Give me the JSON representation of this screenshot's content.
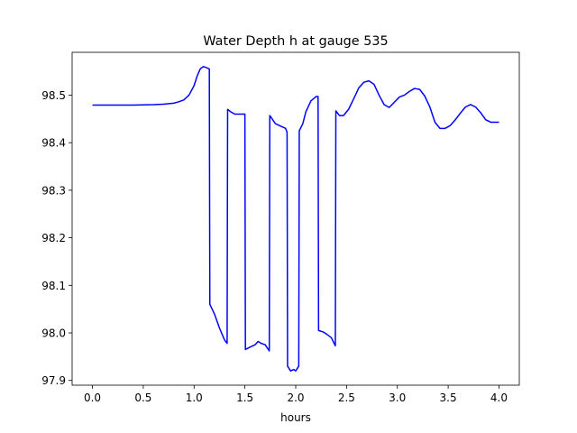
{
  "chart_data": {
    "type": "line",
    "title": "Water Depth h at gauge 535",
    "xlabel": "hours",
    "ylabel": "",
    "xlim": [
      -0.2,
      4.2
    ],
    "ylim": [
      97.89,
      98.59
    ],
    "xticks": [
      0.0,
      0.5,
      1.0,
      1.5,
      2.0,
      2.5,
      3.0,
      3.5,
      4.0
    ],
    "xtick_labels": [
      "0.0",
      "0.5",
      "1.0",
      "1.5",
      "2.0",
      "2.5",
      "3.0",
      "3.5",
      "4.0"
    ],
    "yticks": [
      97.9,
      98.0,
      98.1,
      98.2,
      98.3,
      98.4,
      98.5
    ],
    "ytick_labels": [
      "97.9",
      "98.0",
      "98.1",
      "98.2",
      "98.3",
      "98.4",
      "98.5"
    ],
    "grid": false,
    "legend": "none",
    "series": [
      {
        "color": "#0000ff",
        "x": [
          0.0,
          0.2,
          0.4,
          0.6,
          0.7,
          0.8,
          0.85,
          0.9,
          0.95,
          1.0,
          1.03,
          1.06,
          1.09,
          1.12,
          1.15,
          1.155,
          1.2,
          1.25,
          1.3,
          1.325,
          1.33,
          1.36,
          1.4,
          1.45,
          1.5,
          1.505,
          1.55,
          1.6,
          1.63,
          1.66,
          1.7,
          1.74,
          1.745,
          1.8,
          1.85,
          1.9,
          1.915,
          1.92,
          1.95,
          1.98,
          2.0,
          2.03,
          2.035,
          2.07,
          2.1,
          2.15,
          2.2,
          2.22,
          2.225,
          2.27,
          2.3,
          2.35,
          2.39,
          2.395,
          2.43,
          2.47,
          2.52,
          2.57,
          2.62,
          2.67,
          2.72,
          2.77,
          2.82,
          2.87,
          2.92,
          2.97,
          3.02,
          3.07,
          3.12,
          3.17,
          3.22,
          3.27,
          3.32,
          3.37,
          3.42,
          3.47,
          3.52,
          3.57,
          3.62,
          3.67,
          3.72,
          3.77,
          3.82,
          3.87,
          3.92,
          3.97,
          4.0
        ],
        "y": [
          98.479,
          98.479,
          98.479,
          98.48,
          98.481,
          98.483,
          98.486,
          98.49,
          98.5,
          98.52,
          98.54,
          98.555,
          98.56,
          98.558,
          98.555,
          98.06,
          98.04,
          98.01,
          97.985,
          97.978,
          98.47,
          98.465,
          98.46,
          98.46,
          98.46,
          97.965,
          97.97,
          97.975,
          97.982,
          97.978,
          97.975,
          97.962,
          98.457,
          98.44,
          98.435,
          98.43,
          98.422,
          97.93,
          97.92,
          97.923,
          97.92,
          97.93,
          98.425,
          98.44,
          98.465,
          98.488,
          98.497,
          98.497,
          98.005,
          98.002,
          97.998,
          97.99,
          97.973,
          98.467,
          98.457,
          98.457,
          98.47,
          98.492,
          98.515,
          98.527,
          98.53,
          98.523,
          98.5,
          98.48,
          98.474,
          98.485,
          98.496,
          98.5,
          98.508,
          98.514,
          98.512,
          98.498,
          98.475,
          98.443,
          98.43,
          98.43,
          98.436,
          98.448,
          98.462,
          98.475,
          98.48,
          98.475,
          98.463,
          98.448,
          98.443,
          98.443,
          98.443
        ]
      }
    ]
  }
}
